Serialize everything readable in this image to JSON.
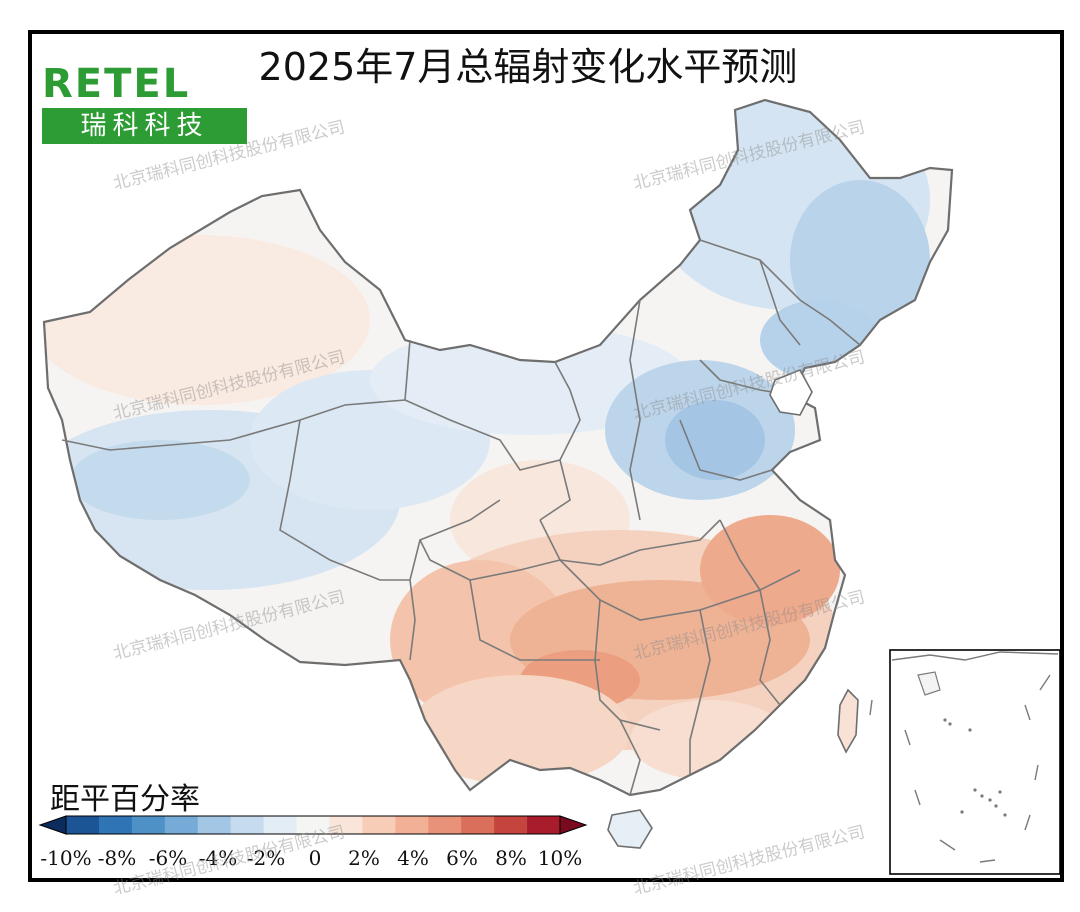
{
  "title": "2025年7月总辐射变化水平预测",
  "logo": {
    "top": "RETEL",
    "bottom": "瑞科科技"
  },
  "legend": {
    "title": "距平百分率",
    "ticks": [
      "-10%",
      "-8%",
      "-6%",
      "-4%",
      "-2%",
      "0",
      "2%",
      "4%",
      "6%",
      "8%",
      "10%"
    ],
    "colors": [
      "#0c2c5e",
      "#1c5595",
      "#2f74b5",
      "#4d91c6",
      "#75abd6",
      "#a2c6e4",
      "#c6dcee",
      "#e3edf6",
      "#f5f5f4",
      "#f9e5da",
      "#f7cdb7",
      "#f2b197",
      "#e9927a",
      "#da6f5c",
      "#c5443e",
      "#a81c2c",
      "#7a0a1e"
    ]
  },
  "watermark": "北京瑞科同创科技股份有限公司",
  "colors": {
    "blue_mid": "#c9ddee",
    "blue_light": "#e3edf6",
    "blue_deep": "#9dc2e1",
    "neutral": "#f6f4f2",
    "orange_light": "#f9e0d2",
    "orange_mid": "#f3bda2",
    "orange_deep": "#ec9f80",
    "border": "#6e6e6e"
  }
}
